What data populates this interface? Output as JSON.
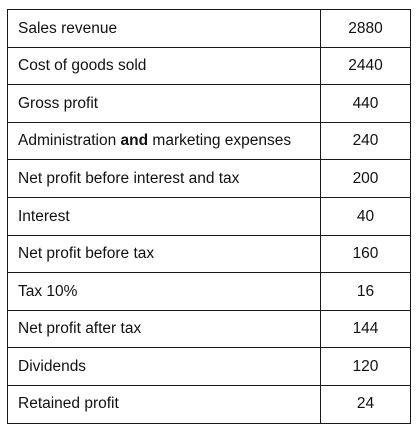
{
  "table": {
    "rows": [
      {
        "label": "Sales revenue",
        "value": "2880"
      },
      {
        "label": "Cost of goods sold",
        "value": "2440"
      },
      {
        "label": "Gross profit",
        "value": "440"
      },
      {
        "label_pre": "Administration",
        "label_bold": "and",
        "label_post": "marketing expenses",
        "value": "240"
      },
      {
        "label": "Net profit before interest and tax",
        "value": "200"
      },
      {
        "label": "Interest",
        "value": "40"
      },
      {
        "label": "Net profit before tax",
        "value": "160"
      },
      {
        "label": "Tax 10%",
        "value": "16"
      },
      {
        "label": "Net profit after tax",
        "value": "144"
      },
      {
        "label": "Dividends",
        "value": "120"
      },
      {
        "label": "Retained profit",
        "value": "24"
      }
    ]
  }
}
